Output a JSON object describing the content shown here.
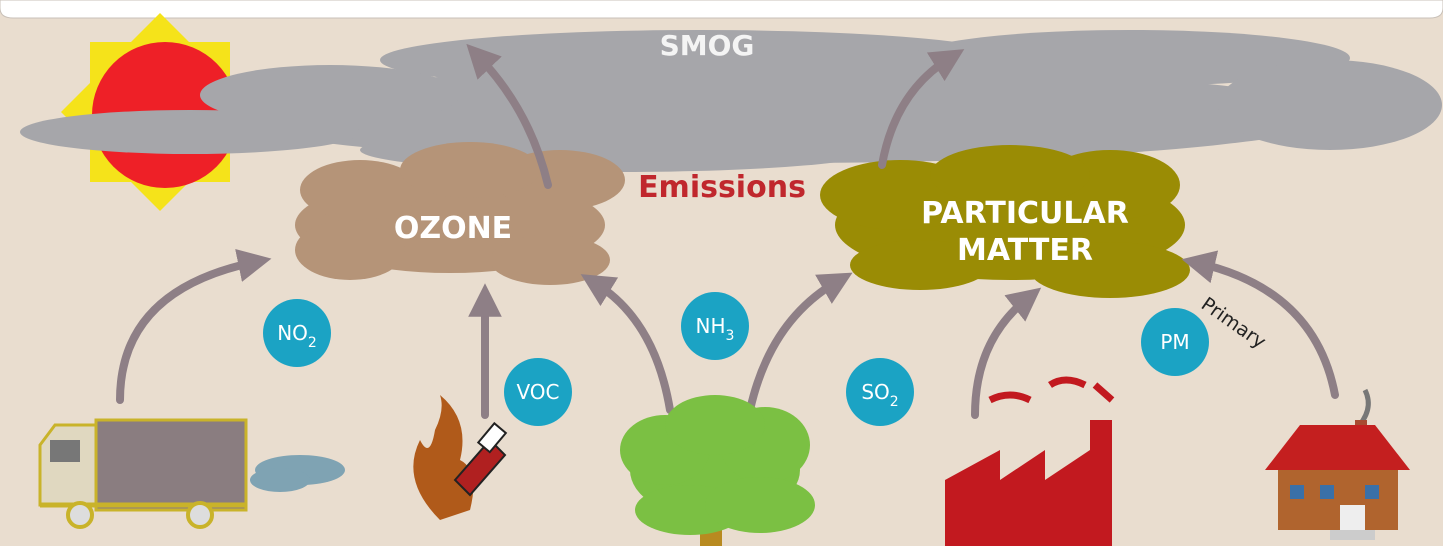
{
  "labels": {
    "smog": "SMOG",
    "emissions": "Emissions",
    "ozone": "OZONE",
    "particulate_matter": [
      "PARTICULAR",
      "MATTER"
    ],
    "primary": "Primary"
  },
  "pollutants": [
    {
      "main": "NO",
      "sub": "2"
    },
    {
      "main": "VOC"
    },
    {
      "main": "NH",
      "sub": "3"
    },
    {
      "main": "SO",
      "sub": "2"
    },
    {
      "main": "PM"
    }
  ]
}
